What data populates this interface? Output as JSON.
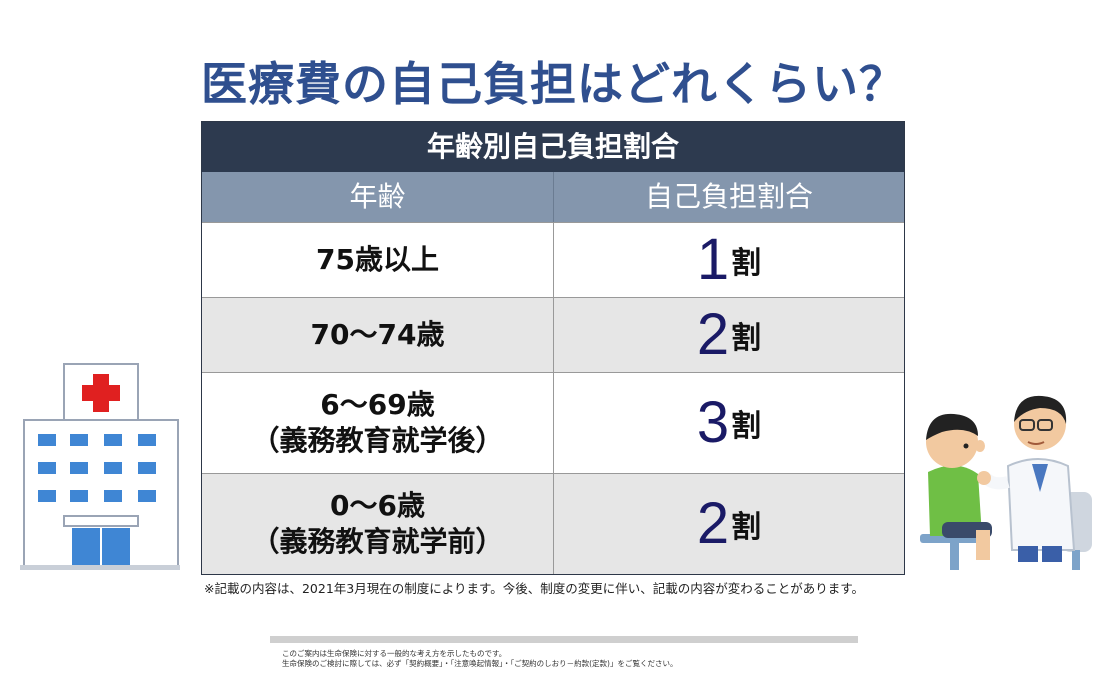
{
  "title": "医療費の自己負担はどれくらい？",
  "table": {
    "caption": "年齢別自己負担割合",
    "headers": {
      "age": "年齢",
      "rate": "自己負担割合"
    },
    "rows": [
      {
        "age_line1": "75歳以上",
        "age_line2": "",
        "rate_number": "1",
        "rate_unit": "割"
      },
      {
        "age_line1": "70～74歳",
        "age_line2": "",
        "rate_number": "2",
        "rate_unit": "割"
      },
      {
        "age_line1": "6～69歳",
        "age_line2": "（義務教育就学後）",
        "rate_number": "3",
        "rate_unit": "割"
      },
      {
        "age_line1": "0～6歳",
        "age_line2": "（義務教育就学前）",
        "rate_number": "2",
        "rate_unit": "割"
      }
    ]
  },
  "footnote": "※記載の内容は、2021年3月現在の制度によります。今後、制度の変更に伴い、記載の内容が変わることがあります。",
  "disclaimer": {
    "line1": "このご案内は生命保険に対する一般的な考え方を示したものです。",
    "line2": "生命保険のご検討に際しては、必ず「契約概要」・「注意喚起情報」・「ご契約のしおり－約款(定款)」をご覧ください。"
  },
  "colors": {
    "title": "#2f4f8f",
    "caption_bg": "#2d3a4f",
    "header_bg": "#8496ad",
    "rate_number": "#1a1a66",
    "cross": "#e02020"
  },
  "illustrations": {
    "left": "hospital-illustration",
    "right": "doctor-patient-illustration"
  }
}
